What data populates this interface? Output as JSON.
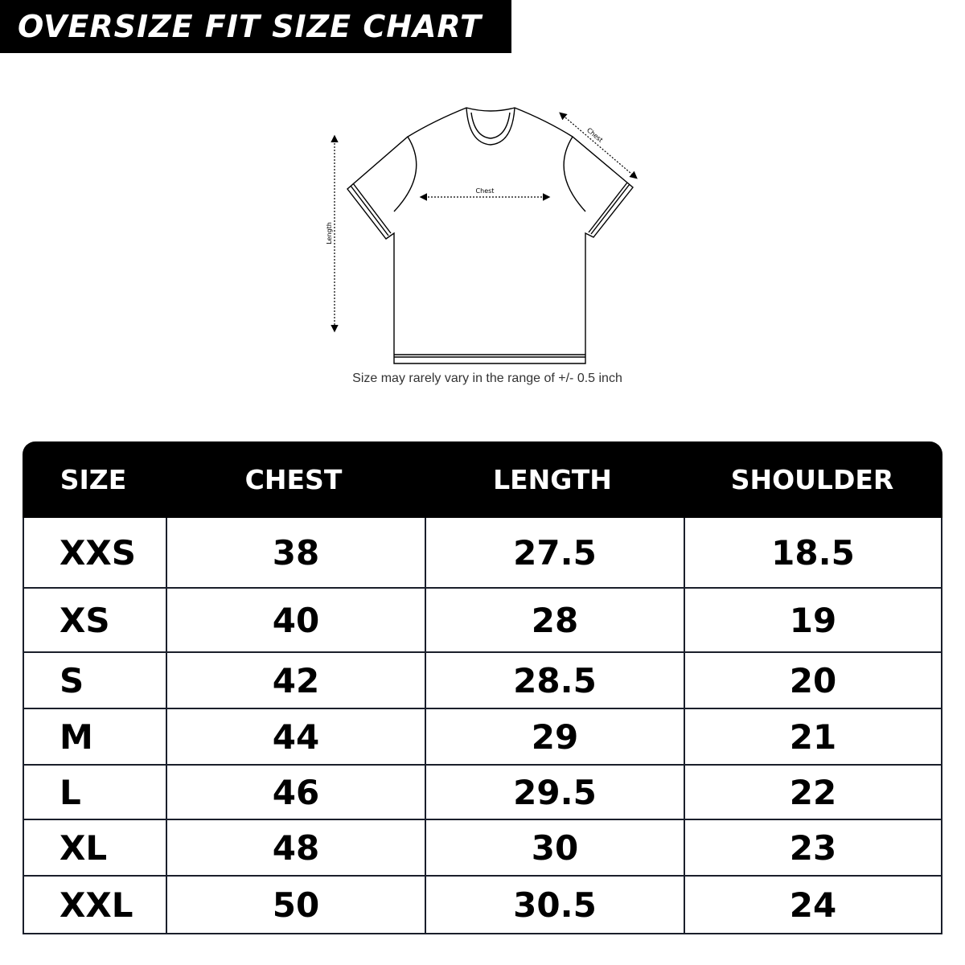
{
  "title": "OVERSIZE FIT SIZE CHART",
  "diagram": {
    "length_label": "Length",
    "chest_label": "Chest",
    "shoulder_label": "Chest",
    "note": "Size may rarely vary in the range of +/- 0.5 inch"
  },
  "table": {
    "headers": [
      "SIZE",
      "CHEST",
      "LENGTH",
      "SHOULDER"
    ],
    "rows": [
      [
        "XXS",
        "38",
        "27.5",
        "18.5"
      ],
      [
        "XS",
        "40",
        "28",
        "19"
      ],
      [
        "S",
        "42",
        "28.5",
        "20"
      ],
      [
        "M",
        "44",
        "29",
        "21"
      ],
      [
        "L",
        "46",
        "29.5",
        "22"
      ],
      [
        "XL",
        "48",
        "30",
        "23"
      ],
      [
        "XXL",
        "50",
        "30.5",
        "24"
      ]
    ]
  },
  "colors": {
    "header_bg": "#000000",
    "border": "#1a1f2b"
  }
}
